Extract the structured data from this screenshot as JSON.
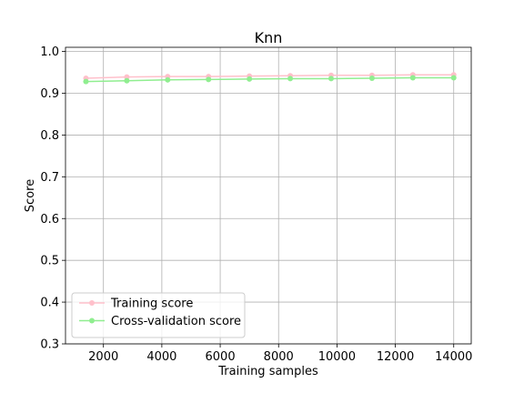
{
  "chart_data": {
    "type": "line",
    "title": "Knn",
    "xlabel": "Training samples",
    "ylabel": "Score",
    "xlim": [
      700,
      14600
    ],
    "ylim": [
      0.3,
      1.01
    ],
    "xticks": [
      2000,
      4000,
      6000,
      8000,
      10000,
      12000,
      14000
    ],
    "yticks": [
      0.3,
      0.4,
      0.5,
      0.6,
      0.7,
      0.8,
      0.9,
      1.0
    ],
    "xtick_labels": [
      "2000",
      "4000",
      "6000",
      "8000",
      "10000",
      "12000",
      "14000"
    ],
    "ytick_labels": [
      "0.3",
      "0.4",
      "0.5",
      "0.6",
      "0.7",
      "0.8",
      "0.9",
      "1.0"
    ],
    "grid": true,
    "legend_position": "lower-left",
    "x": [
      1400,
      2800,
      4200,
      5600,
      7000,
      8400,
      9800,
      11200,
      12600,
      14000
    ],
    "series": [
      {
        "name": "Training score",
        "color": "#ffc0cb",
        "values": [
          0.936,
          0.939,
          0.94,
          0.94,
          0.941,
          0.942,
          0.943,
          0.943,
          0.944,
          0.944
        ]
      },
      {
        "name": "Cross-validation score",
        "color": "#90ee90",
        "values": [
          0.928,
          0.93,
          0.932,
          0.933,
          0.934,
          0.935,
          0.935,
          0.936,
          0.937,
          0.937
        ]
      }
    ]
  }
}
